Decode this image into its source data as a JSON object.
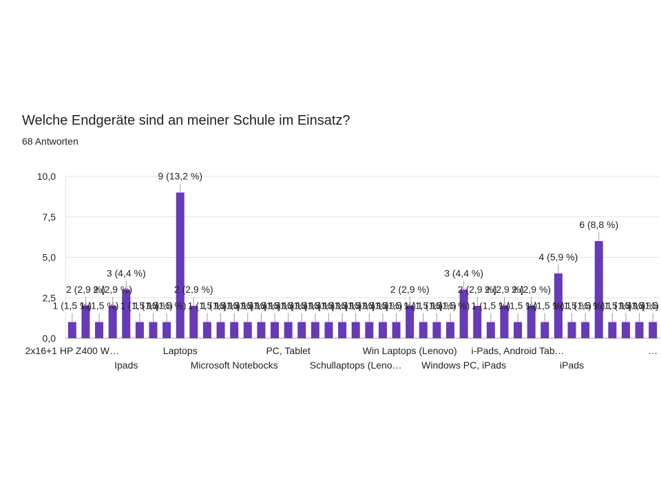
{
  "chart_data": {
    "type": "bar",
    "title": "Welche Endgeräte sind an meiner Schule im Einsatz?",
    "subtitle": "68 Antworten",
    "ylim": [
      0,
      10
    ],
    "yticks": [
      "0,0",
      "2,5",
      "5,0",
      "7,5",
      "10,0"
    ],
    "bar_color": "#673ab7",
    "grid": true,
    "values": [
      1,
      2,
      1,
      2,
      3,
      1,
      1,
      1,
      9,
      2,
      1,
      1,
      1,
      1,
      1,
      1,
      1,
      1,
      1,
      1,
      1,
      1,
      1,
      1,
      1,
      2,
      1,
      1,
      1,
      3,
      2,
      1,
      2,
      1,
      2,
      1,
      4,
      1,
      1,
      6,
      1,
      1,
      1,
      1
    ],
    "data_labels": [
      "1 (1,5 %)",
      "2 (2,9 %)",
      "1 (1,5 %)",
      "2 (2,9 %)",
      "3 (4,4 %)",
      "1 (1,5 %)",
      "1 (1,5 %)",
      "1 (1,5 %)",
      "9 (13,2 %)",
      "2 (2,9 %)",
      "1 (1,5 %)",
      "1 (1,5 %)",
      "1 (1,5 %)",
      "1 (1,5 %)",
      "1 (1,5 %)",
      "1 (1,5 %)",
      "1 (1,5 %)",
      "1 (1,5 %)",
      "1 (1,5 %)",
      "1 (1,5 %)",
      "1 (1,5 %)",
      "1 (1,5 %)",
      "1 (1,5 %)",
      "1 (1,5 %)",
      "1 (1,5 %)",
      "2 (2,9 %)",
      "1 (1,5 %)",
      "1 (1,5 %)",
      "1 (1,5 %)",
      "3 (4,4 %)",
      "2 (2,9 %)",
      "1 (1,5 %)",
      "2 (2,9 %)",
      "1 (1,5 %)",
      "2 (2,9 %)",
      "1 (1,5 %)",
      "4 (5,9 %)",
      "1 (1,5 %)",
      "1 (1,5 %)",
      "6 (8,8 %)",
      "1 (1,5 %)",
      "1 (1,5 %)",
      "1 (1,5 %)",
      "1 (1,5 %)"
    ],
    "categories_visible": [
      {
        "index": 0,
        "label": "2x16+1 HP Z400 W…",
        "row": 0
      },
      {
        "index": 4,
        "label": "Ipads",
        "row": 1
      },
      {
        "index": 8,
        "label": "Laptops",
        "row": 0
      },
      {
        "index": 12,
        "label": "Microsoft Notebocks",
        "row": 1
      },
      {
        "index": 16,
        "label": "PC, Tablet",
        "row": 0
      },
      {
        "index": 21,
        "label": "Schullaptops (Leno…",
        "row": 1
      },
      {
        "index": 25,
        "label": "Win Laptops (Lenovo)",
        "row": 0
      },
      {
        "index": 29,
        "label": "Windows PC, iPads",
        "row": 1
      },
      {
        "index": 33,
        "label": "i-Pads, Android Tab…",
        "row": 0
      },
      {
        "index": 37,
        "label": "iPads",
        "row": 1
      },
      {
        "index": 43,
        "label": "…",
        "row": 0
      }
    ]
  }
}
